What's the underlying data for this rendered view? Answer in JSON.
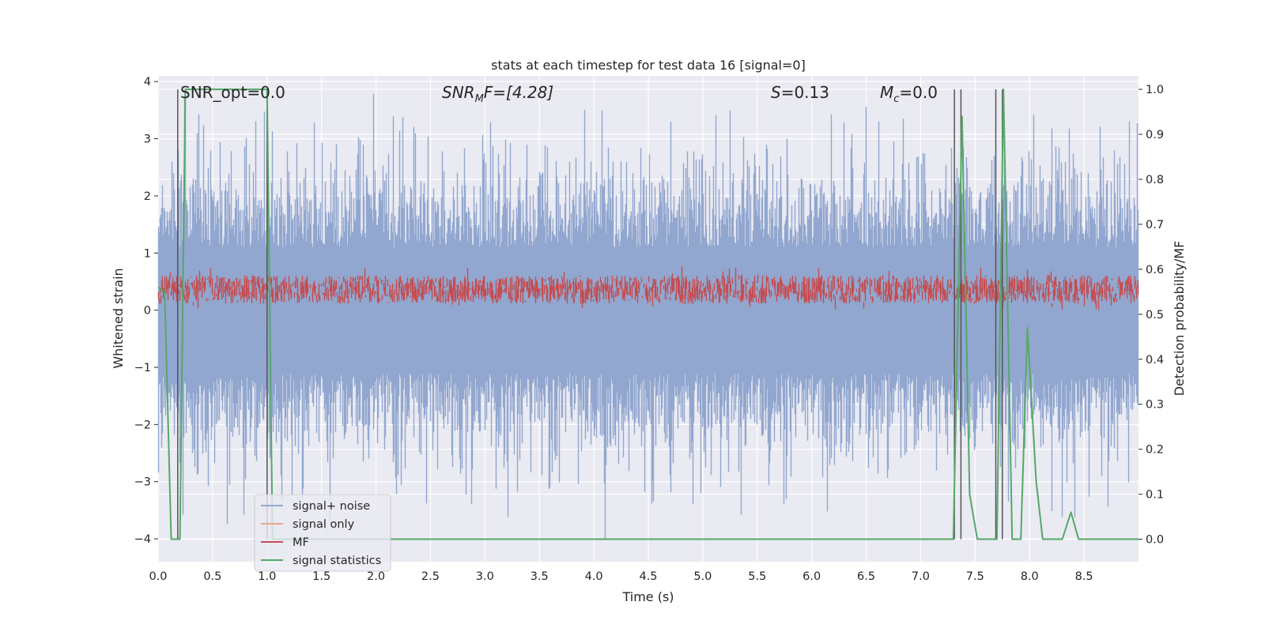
{
  "chart_data": {
    "type": "line",
    "title": "stats at each timestep for test data 16 [signal=0]",
    "xlabel": "Time (s)",
    "ylabel": "Whitened strain",
    "y2label": "Detection probability/MF",
    "xlim": [
      0.0,
      9.0
    ],
    "ylim": [
      -4.4,
      4.1
    ],
    "y2lim": [
      -0.05,
      1.03
    ],
    "x_ticks": [
      "0.0",
      "0.5",
      "1.0",
      "1.5",
      "2.0",
      "2.5",
      "3.0",
      "3.5",
      "4.0",
      "4.5",
      "5.0",
      "5.5",
      "6.0",
      "6.5",
      "7.0",
      "7.5",
      "8.0",
      "8.5"
    ],
    "y_ticks": [
      "4",
      "3",
      "2",
      "1",
      "0",
      "−1",
      "−2",
      "−3",
      "−4"
    ],
    "y2_ticks": [
      "1.0",
      "0.9",
      "0.8",
      "0.7",
      "0.6",
      "0.5",
      "0.4",
      "0.3",
      "0.2",
      "0.1",
      "0.0"
    ],
    "grid": true,
    "legend_position": "lower-left",
    "annotations": {
      "snr_opt": "SNR_opt=0.0",
      "snr_mf_prefix": "SNR",
      "snr_mf_sub": "M",
      "snr_mf_suffix": "F=[4.28]",
      "s_prefix": "S",
      "s_suffix": "=0.13",
      "mc_prefix": "M",
      "mc_sub": "c",
      "mc_suffix": "=0.0"
    },
    "series": [
      {
        "name": "signal+ noise",
        "color": "#92a7cf",
        "axis": "left",
        "description_values": "whitened noise approx. in [-4.0, 3.8]"
      },
      {
        "name": "signal only",
        "color": "#e8a88a",
        "axis": "left"
      },
      {
        "name": "MF",
        "color": "#c44e52",
        "axis": "right",
        "range": [
          0.52,
          0.59
        ]
      },
      {
        "name": "signal statistics",
        "color": "#55a868",
        "axis": "right",
        "x": [
          0.0,
          0.06,
          0.12,
          0.2,
          0.25,
          0.4,
          0.6,
          0.8,
          1.0,
          1.05,
          1.2,
          7.0,
          7.3,
          7.38,
          7.45,
          7.52,
          7.7,
          7.76,
          7.84,
          7.92,
          7.98,
          8.06,
          8.12,
          8.3,
          8.38,
          8.45,
          9.0
        ],
        "y": [
          0.56,
          0.55,
          0.0,
          0.0,
          1.0,
          1.0,
          1.0,
          1.0,
          1.0,
          0.0,
          0.0,
          0.0,
          0.0,
          0.94,
          0.1,
          0.0,
          0.0,
          1.0,
          0.0,
          0.0,
          0.47,
          0.13,
          0.0,
          0.0,
          0.06,
          0.0,
          0.0
        ]
      }
    ],
    "vlines_x": [
      0.18,
      1.0,
      7.31,
      7.37,
      7.69,
      7.75
    ]
  }
}
